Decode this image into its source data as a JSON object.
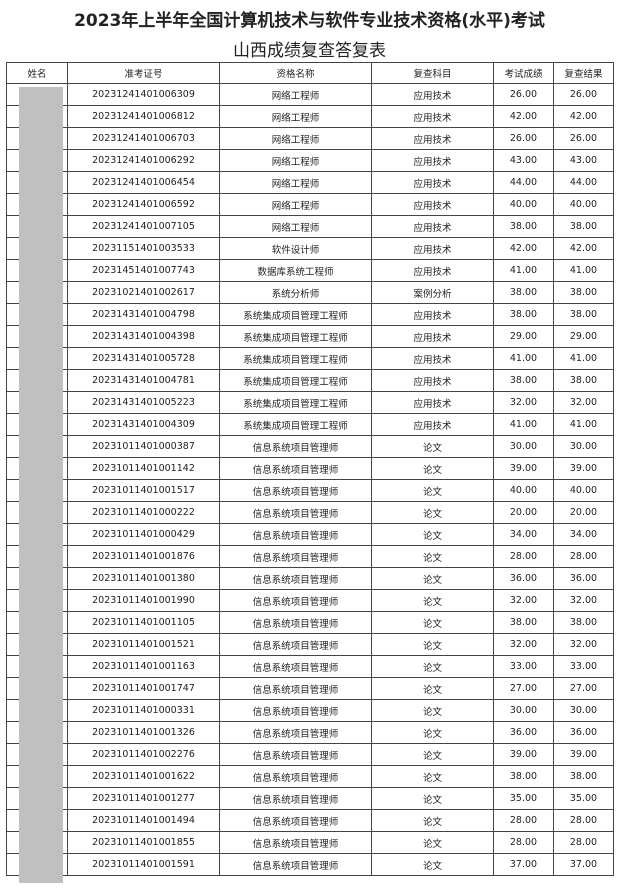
{
  "title": "2023年上半年全国计算机技术与软件专业技术资格(水平)考试",
  "subtitle": "山西成绩复查答复表",
  "columns": [
    "姓名",
    "准考证号",
    "资格名称",
    "复查科目",
    "考试成绩",
    "复查结果"
  ],
  "rows": [
    [
      "",
      "20231241401006309",
      "网络工程师",
      "应用技术",
      "26.00",
      "26.00"
    ],
    [
      "",
      "20231241401006812",
      "网络工程师",
      "应用技术",
      "42.00",
      "42.00"
    ],
    [
      "",
      "20231241401006703",
      "网络工程师",
      "应用技术",
      "26.00",
      "26.00"
    ],
    [
      "",
      "20231241401006292",
      "网络工程师",
      "应用技术",
      "43.00",
      "43.00"
    ],
    [
      "",
      "20231241401006454",
      "网络工程师",
      "应用技术",
      "44.00",
      "44.00"
    ],
    [
      "",
      "20231241401006592",
      "网络工程师",
      "应用技术",
      "40.00",
      "40.00"
    ],
    [
      "",
      "20231241401007105",
      "网络工程师",
      "应用技术",
      "38.00",
      "38.00"
    ],
    [
      "",
      "20231151401003533",
      "软件设计师",
      "应用技术",
      "42.00",
      "42.00"
    ],
    [
      "",
      "20231451401007743",
      "数据库系统工程师",
      "应用技术",
      "41.00",
      "41.00"
    ],
    [
      "",
      "20231021401002617",
      "系统分析师",
      "案例分析",
      "38.00",
      "38.00"
    ],
    [
      "",
      "20231431401004798",
      "系统集成项目管理工程师",
      "应用技术",
      "38.00",
      "38.00"
    ],
    [
      "",
      "20231431401004398",
      "系统集成项目管理工程师",
      "应用技术",
      "29.00",
      "29.00"
    ],
    [
      "",
      "20231431401005728",
      "系统集成项目管理工程师",
      "应用技术",
      "41.00",
      "41.00"
    ],
    [
      "",
      "20231431401004781",
      "系统集成项目管理工程师",
      "应用技术",
      "38.00",
      "38.00"
    ],
    [
      "",
      "20231431401005223",
      "系统集成项目管理工程师",
      "应用技术",
      "32.00",
      "32.00"
    ],
    [
      "",
      "20231431401004309",
      "系统集成项目管理工程师",
      "应用技术",
      "41.00",
      "41.00"
    ],
    [
      "",
      "20231011401000387",
      "信息系统项目管理师",
      "论文",
      "30.00",
      "30.00"
    ],
    [
      "",
      "20231011401001142",
      "信息系统项目管理师",
      "论文",
      "39.00",
      "39.00"
    ],
    [
      "",
      "20231011401001517",
      "信息系统项目管理师",
      "论文",
      "40.00",
      "40.00"
    ],
    [
      "",
      "20231011401000222",
      "信息系统项目管理师",
      "论文",
      "20.00",
      "20.00"
    ],
    [
      "",
      "20231011401000429",
      "信息系统项目管理师",
      "论文",
      "34.00",
      "34.00"
    ],
    [
      "",
      "20231011401001876",
      "信息系统项目管理师",
      "论文",
      "28.00",
      "28.00"
    ],
    [
      "",
      "20231011401001380",
      "信息系统项目管理师",
      "论文",
      "36.00",
      "36.00"
    ],
    [
      "",
      "20231011401001990",
      "信息系统项目管理师",
      "论文",
      "32.00",
      "32.00"
    ],
    [
      "",
      "20231011401001105",
      "信息系统项目管理师",
      "论文",
      "38.00",
      "38.00"
    ],
    [
      "",
      "20231011401001521",
      "信息系统项目管理师",
      "论文",
      "32.00",
      "32.00"
    ],
    [
      "",
      "20231011401001163",
      "信息系统项目管理师",
      "论文",
      "33.00",
      "33.00"
    ],
    [
      "",
      "20231011401001747",
      "信息系统项目管理师",
      "论文",
      "27.00",
      "27.00"
    ],
    [
      "",
      "20231011401000331",
      "信息系统项目管理师",
      "论文",
      "30.00",
      "30.00"
    ],
    [
      "",
      "20231011401001326",
      "信息系统项目管理师",
      "论文",
      "36.00",
      "36.00"
    ],
    [
      "",
      "20231011401002276",
      "信息系统项目管理师",
      "论文",
      "39.00",
      "39.00"
    ],
    [
      "",
      "20231011401001622",
      "信息系统项目管理师",
      "论文",
      "38.00",
      "38.00"
    ],
    [
      "",
      "20231011401001277",
      "信息系统项目管理师",
      "论文",
      "35.00",
      "35.00"
    ],
    [
      "",
      "20231011401001494",
      "信息系统项目管理师",
      "论文",
      "28.00",
      "28.00"
    ],
    [
      "",
      "20231011401001855",
      "信息系统项目管理师",
      "论文",
      "28.00",
      "28.00"
    ],
    [
      "",
      "20231011401001591",
      "信息系统项目管理师",
      "论文",
      "37.00",
      "37.00"
    ]
  ]
}
